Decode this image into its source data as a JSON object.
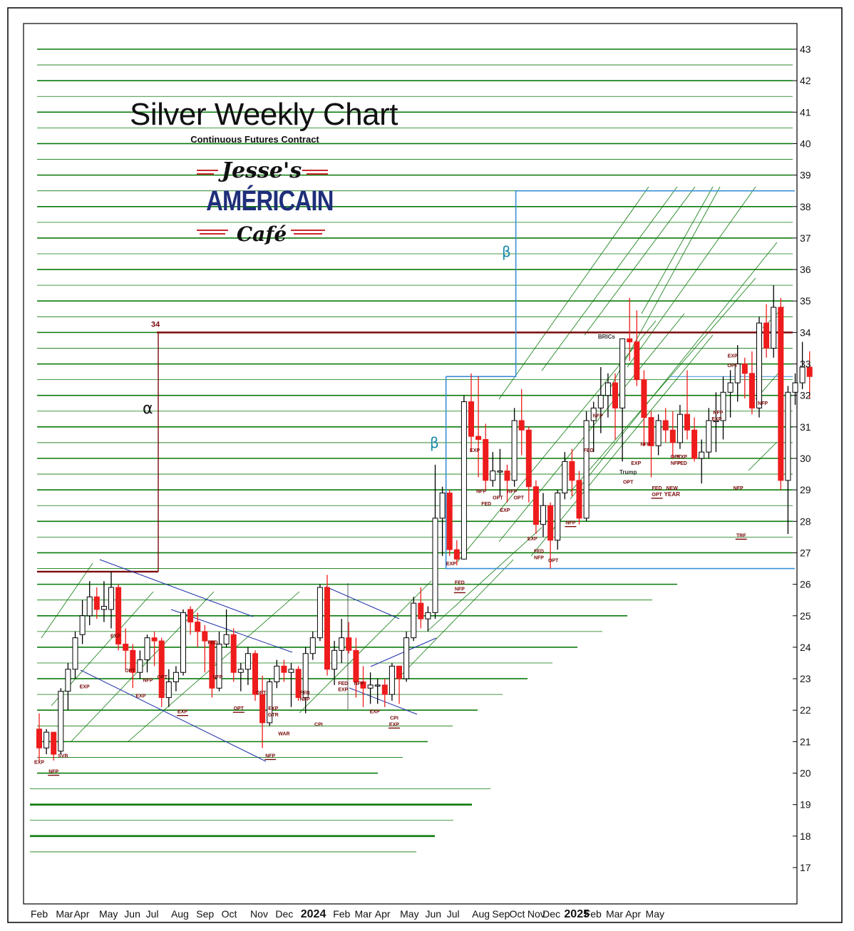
{
  "header": {
    "title": "Silver Weekly Chart",
    "subtitle": "Continuous Futures Contract",
    "logo": {
      "line1": "Jesse's",
      "line2": "AMÉRICAIN",
      "line3": "Café"
    }
  },
  "chart_data": {
    "type": "candlestick",
    "title": "Silver Weekly Chart",
    "subtitle": "Continuous Futures Contract",
    "ylim": [
      16.0,
      43.8
    ],
    "y_ticks": [
      17,
      18,
      19,
      20,
      21,
      22,
      23,
      24,
      25,
      26,
      27,
      28,
      29,
      30,
      31,
      32,
      33,
      34,
      35,
      36,
      37,
      38,
      39,
      40,
      41,
      42,
      43
    ],
    "x_tick_labels": [
      {
        "label": "Feb",
        "week": 0,
        "bold": false
      },
      {
        "label": "Mar",
        "week": 3.5,
        "bold": false
      },
      {
        "label": "Apr",
        "week": 6,
        "bold": false
      },
      {
        "label": "May",
        "week": 9.5,
        "bold": false
      },
      {
        "label": "Jun",
        "week": 13,
        "bold": false
      },
      {
        "label": "Jul",
        "week": 16,
        "bold": false
      },
      {
        "label": "Aug",
        "week": 19.5,
        "bold": false
      },
      {
        "label": "Sep",
        "week": 23,
        "bold": false
      },
      {
        "label": "Oct",
        "week": 26.5,
        "bold": false
      },
      {
        "label": "Nov",
        "week": 30.5,
        "bold": false
      },
      {
        "label": "Dec",
        "week": 34,
        "bold": false
      },
      {
        "label": "2024",
        "week": 37.5,
        "bold": true
      },
      {
        "label": "Feb",
        "week": 42,
        "bold": false
      },
      {
        "label": "Mar",
        "week": 45,
        "bold": false
      },
      {
        "label": "Apr",
        "week": 47.8,
        "bold": false
      },
      {
        "label": "May",
        "week": 51.3,
        "bold": false
      },
      {
        "label": "Jun",
        "week": 54.8,
        "bold": false
      },
      {
        "label": "Jul",
        "week": 57.8,
        "bold": false
      },
      {
        "label": "Aug",
        "week": 61.3,
        "bold": false
      },
      {
        "label": "Sep",
        "week": 64.1,
        "bold": false
      },
      {
        "label": "Oct",
        "week": 66.5,
        "bold": false
      },
      {
        "label": "Nov",
        "week": 69,
        "bold": false
      },
      {
        "label": "Dec",
        "week": 71.1,
        "bold": false
      },
      {
        "label": "2025",
        "week": 74.1,
        "bold": true
      },
      {
        "label": "Feb",
        "week": 76.9,
        "bold": false
      },
      {
        "label": "Mar",
        "week": 79.9,
        "bold": false
      },
      {
        "label": "Apr",
        "week": 82.6,
        "bold": false
      },
      {
        "label": "May",
        "week": 85.4,
        "bold": false
      }
    ],
    "candles": [
      {
        "o": 21.4,
        "h": 21.9,
        "l": 20.4,
        "c": 20.8
      },
      {
        "o": 20.8,
        "h": 21.4,
        "l": 20.6,
        "c": 21.3
      },
      {
        "o": 21.3,
        "h": 21.3,
        "l": 20.4,
        "c": 20.6
      },
      {
        "o": 20.7,
        "h": 22.7,
        "l": 20.6,
        "c": 22.6
      },
      {
        "o": 22.6,
        "h": 23.5,
        "l": 22.0,
        "c": 23.3
      },
      {
        "o": 23.3,
        "h": 24.5,
        "l": 23.0,
        "c": 24.3
      },
      {
        "o": 24.4,
        "h": 25.5,
        "l": 24.1,
        "c": 25.0
      },
      {
        "o": 25.0,
        "h": 26.1,
        "l": 24.7,
        "c": 25.6
      },
      {
        "o": 25.6,
        "h": 25.9,
        "l": 24.9,
        "c": 25.2
      },
      {
        "o": 25.2,
        "h": 26.1,
        "l": 24.8,
        "c": 25.3
      },
      {
        "o": 25.2,
        "h": 26.4,
        "l": 24.6,
        "c": 25.9
      },
      {
        "o": 25.9,
        "h": 26.0,
        "l": 23.9,
        "c": 24.1
      },
      {
        "o": 24.1,
        "h": 24.6,
        "l": 23.3,
        "c": 23.9
      },
      {
        "o": 23.9,
        "h": 24.1,
        "l": 22.7,
        "c": 23.2
      },
      {
        "o": 23.2,
        "h": 23.9,
        "l": 23.0,
        "c": 23.6
      },
      {
        "o": 23.6,
        "h": 24.4,
        "l": 23.2,
        "c": 24.3
      },
      {
        "o": 24.3,
        "h": 24.5,
        "l": 23.4,
        "c": 24.2
      },
      {
        "o": 24.2,
        "h": 24.3,
        "l": 22.1,
        "c": 22.4
      },
      {
        "o": 22.4,
        "h": 23.3,
        "l": 22.1,
        "c": 22.9
      },
      {
        "o": 22.9,
        "h": 23.4,
        "l": 22.6,
        "c": 23.2
      },
      {
        "o": 23.2,
        "h": 25.2,
        "l": 23.1,
        "c": 25.1
      },
      {
        "o": 25.2,
        "h": 25.3,
        "l": 24.4,
        "c": 24.8
      },
      {
        "o": 24.8,
        "h": 25.1,
        "l": 24.0,
        "c": 24.5
      },
      {
        "o": 24.5,
        "h": 24.7,
        "l": 23.2,
        "c": 24.2
      },
      {
        "o": 24.2,
        "h": 24.2,
        "l": 22.4,
        "c": 22.7
      },
      {
        "o": 22.7,
        "h": 24.5,
        "l": 22.6,
        "c": 24.1
      },
      {
        "o": 24.1,
        "h": 25.2,
        "l": 24.0,
        "c": 24.4
      },
      {
        "o": 24.4,
        "h": 24.6,
        "l": 22.9,
        "c": 23.2
      },
      {
        "o": 23.2,
        "h": 23.5,
        "l": 22.6,
        "c": 23.3
      },
      {
        "o": 23.3,
        "h": 24.0,
        "l": 22.8,
        "c": 23.8
      },
      {
        "o": 23.8,
        "h": 23.9,
        "l": 22.3,
        "c": 22.5
      },
      {
        "o": 22.5,
        "h": 23.1,
        "l": 20.8,
        "c": 21.6
      },
      {
        "o": 21.6,
        "h": 23.0,
        "l": 21.5,
        "c": 22.9
      },
      {
        "o": 22.9,
        "h": 23.6,
        "l": 22.7,
        "c": 23.4
      },
      {
        "o": 23.4,
        "h": 23.6,
        "l": 22.9,
        "c": 23.2
      },
      {
        "o": 23.2,
        "h": 23.5,
        "l": 22.1,
        "c": 23.3
      },
      {
        "o": 23.3,
        "h": 23.4,
        "l": 22.3,
        "c": 22.4
      },
      {
        "o": 22.4,
        "h": 24.0,
        "l": 21.9,
        "c": 23.8
      },
      {
        "o": 23.8,
        "h": 24.5,
        "l": 23.6,
        "c": 24.3
      },
      {
        "o": 24.3,
        "h": 26.0,
        "l": 24.2,
        "c": 25.9
      },
      {
        "o": 25.9,
        "h": 26.3,
        "l": 23.1,
        "c": 23.3
      },
      {
        "o": 23.3,
        "h": 24.2,
        "l": 22.8,
        "c": 23.9
      },
      {
        "o": 23.9,
        "h": 24.9,
        "l": 23.5,
        "c": 24.3
      },
      {
        "o": 24.3,
        "h": 24.8,
        "l": 23.8,
        "c": 23.9
      },
      {
        "o": 23.9,
        "h": 24.3,
        "l": 22.4,
        "c": 22.9
      },
      {
        "o": 22.9,
        "h": 23.4,
        "l": 22.1,
        "c": 22.7
      },
      {
        "o": 22.7,
        "h": 23.2,
        "l": 22.2,
        "c": 22.8
      },
      {
        "o": 22.8,
        "h": 23.0,
        "l": 22.2,
        "c": 22.8
      },
      {
        "o": 22.8,
        "h": 23.0,
        "l": 22.1,
        "c": 22.5
      },
      {
        "o": 22.5,
        "h": 23.5,
        "l": 22.3,
        "c": 23.4
      },
      {
        "o": 23.4,
        "h": 23.4,
        "l": 22.2,
        "c": 23.0
      },
      {
        "o": 23.0,
        "h": 24.5,
        "l": 22.9,
        "c": 24.3
      },
      {
        "o": 24.3,
        "h": 25.6,
        "l": 24.2,
        "c": 25.4
      },
      {
        "o": 25.4,
        "h": 25.9,
        "l": 24.6,
        "c": 24.9
      },
      {
        "o": 24.9,
        "h": 25.3,
        "l": 24.5,
        "c": 25.1
      },
      {
        "o": 25.1,
        "h": 29.8,
        "l": 24.9,
        "c": 28.1
      },
      {
        "o": 28.1,
        "h": 29.1,
        "l": 26.9,
        "c": 28.9
      },
      {
        "o": 28.9,
        "h": 29.0,
        "l": 26.9,
        "c": 27.1
      },
      {
        "o": 27.1,
        "h": 27.4,
        "l": 26.6,
        "c": 26.8
      },
      {
        "o": 26.8,
        "h": 32.0,
        "l": 26.8,
        "c": 31.8
      },
      {
        "o": 31.8,
        "h": 32.7,
        "l": 30.2,
        "c": 30.7
      },
      {
        "o": 30.7,
        "h": 32.6,
        "l": 29.4,
        "c": 30.6
      },
      {
        "o": 30.6,
        "h": 31.1,
        "l": 29.0,
        "c": 29.3
      },
      {
        "o": 29.3,
        "h": 30.2,
        "l": 29.1,
        "c": 29.6
      },
      {
        "o": 29.6,
        "h": 30.3,
        "l": 28.8,
        "c": 29.6
      },
      {
        "o": 29.6,
        "h": 29.8,
        "l": 28.6,
        "c": 29.3
      },
      {
        "o": 29.3,
        "h": 31.6,
        "l": 29.1,
        "c": 31.2
      },
      {
        "o": 31.2,
        "h": 32.2,
        "l": 30.1,
        "c": 30.9
      },
      {
        "o": 30.9,
        "h": 31.0,
        "l": 28.6,
        "c": 29.1
      },
      {
        "o": 29.1,
        "h": 29.3,
        "l": 27.6,
        "c": 27.9
      },
      {
        "o": 27.9,
        "h": 28.9,
        "l": 27.5,
        "c": 28.5
      },
      {
        "o": 28.5,
        "h": 28.6,
        "l": 26.5,
        "c": 27.4
      },
      {
        "o": 27.4,
        "h": 29.0,
        "l": 27.1,
        "c": 28.9
      },
      {
        "o": 28.9,
        "h": 30.2,
        "l": 28.7,
        "c": 29.9
      },
      {
        "o": 29.9,
        "h": 30.3,
        "l": 28.8,
        "c": 29.3
      },
      {
        "o": 29.3,
        "h": 29.6,
        "l": 27.9,
        "c": 28.1
      },
      {
        "o": 28.1,
        "h": 31.5,
        "l": 28.0,
        "c": 31.2
      },
      {
        "o": 31.2,
        "h": 31.8,
        "l": 30.2,
        "c": 31.6
      },
      {
        "o": 31.6,
        "h": 32.9,
        "l": 30.8,
        "c": 32.0
      },
      {
        "o": 32.0,
        "h": 32.7,
        "l": 31.3,
        "c": 32.4
      },
      {
        "o": 32.4,
        "h": 32.7,
        "l": 30.6,
        "c": 31.6
      },
      {
        "o": 31.6,
        "h": 33.8,
        "l": 29.9,
        "c": 33.8
      },
      {
        "o": 33.8,
        "h": 35.1,
        "l": 33.1,
        "c": 33.7
      },
      {
        "o": 33.7,
        "h": 34.7,
        "l": 32.3,
        "c": 32.5
      },
      {
        "o": 32.5,
        "h": 32.8,
        "l": 30.4,
        "c": 31.3
      },
      {
        "o": 31.3,
        "h": 31.5,
        "l": 29.4,
        "c": 30.4
      },
      {
        "o": 30.4,
        "h": 31.4,
        "l": 30.1,
        "c": 31.2
      },
      {
        "o": 31.2,
        "h": 31.6,
        "l": 30.5,
        "c": 30.9
      },
      {
        "o": 30.9,
        "h": 31.5,
        "l": 30.0,
        "c": 30.5
      },
      {
        "o": 30.5,
        "h": 31.7,
        "l": 30.3,
        "c": 31.4
      },
      {
        "o": 31.4,
        "h": 32.8,
        "l": 30.6,
        "c": 30.9
      },
      {
        "o": 30.9,
        "h": 31.3,
        "l": 29.9,
        "c": 30.0
      },
      {
        "o": 30.0,
        "h": 30.6,
        "l": 29.2,
        "c": 30.2
      },
      {
        "o": 30.2,
        "h": 31.6,
        "l": 30.0,
        "c": 31.2
      },
      {
        "o": 31.2,
        "h": 32.1,
        "l": 30.2,
        "c": 31.2
      },
      {
        "o": 31.2,
        "h": 32.6,
        "l": 30.6,
        "c": 32.1
      },
      {
        "o": 32.1,
        "h": 32.8,
        "l": 31.3,
        "c": 32.4
      },
      {
        "o": 32.4,
        "h": 33.6,
        "l": 31.8,
        "c": 33.0
      },
      {
        "o": 33.0,
        "h": 33.2,
        "l": 31.9,
        "c": 32.7
      },
      {
        "o": 32.7,
        "h": 33.4,
        "l": 31.4,
        "c": 31.6
      },
      {
        "o": 31.6,
        "h": 34.5,
        "l": 31.3,
        "c": 34.3
      },
      {
        "o": 34.3,
        "h": 34.9,
        "l": 33.2,
        "c": 33.5
      },
      {
        "o": 33.5,
        "h": 35.5,
        "l": 33.2,
        "c": 34.8
      },
      {
        "o": 34.8,
        "h": 35.1,
        "l": 29.0,
        "c": 29.3
      },
      {
        "o": 29.3,
        "h": 32.3,
        "l": 27.6,
        "c": 32.1
      },
      {
        "o": 32.1,
        "h": 32.7,
        "l": 31.7,
        "c": 32.4
      },
      {
        "o": 32.4,
        "h": 33.7,
        "l": 32.2,
        "c": 32.9
      },
      {
        "o": 32.9,
        "h": 33.4,
        "l": 31.9,
        "c": 32.6
      }
    ],
    "levels": {
      "red_line": {
        "label": "34",
        "value": 34.0
      },
      "alpha": {
        "label": "α",
        "from": 26.4,
        "to": 34.0
      },
      "beta_labels": [
        "β",
        "β"
      ]
    },
    "annotations": [
      {
        "text": "EXP",
        "week": 0,
        "y": 20.3
      },
      {
        "text": "NFP",
        "week": 2,
        "y": 20.0,
        "underline": true
      },
      {
        "text": "SVB",
        "week": 3.3,
        "y": 20.5
      },
      {
        "text": "EXP",
        "week": 6.3,
        "y": 22.7
      },
      {
        "text": "EXP",
        "week": 10.6,
        "y": 24.3
      },
      {
        "text": "OPT",
        "week": 12.6,
        "y": 23.2
      },
      {
        "text": "EXP",
        "week": 14.1,
        "y": 22.4
      },
      {
        "text": "NFP",
        "week": 15.1,
        "y": 22.9
      },
      {
        "text": "OPT",
        "week": 17.1,
        "y": 23.0
      },
      {
        "text": "EXP",
        "week": 19.9,
        "y": 21.9,
        "underline": true
      },
      {
        "text": "FED",
        "week": 24.1,
        "y": 24.1
      },
      {
        "text": "NFP",
        "week": 24.8,
        "y": 23.0
      },
      {
        "text": "OPT",
        "week": 27.7,
        "y": 22.0,
        "underline": true
      },
      {
        "text": "OPT",
        "week": 30.8,
        "y": 22.5
      },
      {
        "text": "EXP",
        "week": 32.5,
        "y": 22.0
      },
      {
        "text": "GTR",
        "week": 32.5,
        "y": 21.8
      },
      {
        "text": "WAR",
        "week": 34.0,
        "y": 21.2
      },
      {
        "text": "NFP",
        "week": 32.1,
        "y": 20.5,
        "underline": true
      },
      {
        "text": "FED",
        "week": 36.9,
        "y": 22.5
      },
      {
        "text": "NFP",
        "week": 36.9,
        "y": 22.3
      },
      {
        "text": "CPI",
        "week": 38.8,
        "y": 21.5
      },
      {
        "text": "FED",
        "week": 42.2,
        "y": 22.8
      },
      {
        "text": "EXP",
        "week": 42.2,
        "y": 22.6
      },
      {
        "text": "NFP",
        "week": 44.4,
        "y": 22.8
      },
      {
        "text": "EXP",
        "week": 46.6,
        "y": 21.9
      },
      {
        "text": "CPI",
        "week": 49.3,
        "y": 21.7
      },
      {
        "text": "EXP",
        "week": 49.3,
        "y": 21.5,
        "underline": true
      },
      {
        "text": "EXP",
        "week": 57.2,
        "y": 26.6
      },
      {
        "text": "FED",
        "week": 58.4,
        "y": 26.0
      },
      {
        "text": "NFP",
        "week": 58.4,
        "y": 25.8,
        "underline": true
      },
      {
        "text": "EXP",
        "week": 60.5,
        "y": 30.2
      },
      {
        "text": "NFP",
        "week": 61.4,
        "y": 28.9
      },
      {
        "text": "FED",
        "week": 62.1,
        "y": 28.5
      },
      {
        "text": "OPT",
        "week": 63.7,
        "y": 28.7
      },
      {
        "text": "EXP",
        "week": 64.7,
        "y": 28.3
      },
      {
        "text": "NFP",
        "week": 65.7,
        "y": 28.9
      },
      {
        "text": "OPT",
        "week": 66.6,
        "y": 28.7
      },
      {
        "text": "EXP",
        "week": 68.5,
        "y": 27.4
      },
      {
        "text": "FED",
        "week": 69.4,
        "y": 27.0
      },
      {
        "text": "NFP",
        "week": 69.4,
        "y": 26.8
      },
      {
        "text": "OPT",
        "week": 71.4,
        "y": 26.7
      },
      {
        "text": "NFP",
        "week": 73.8,
        "y": 27.9,
        "underline": true
      },
      {
        "text": "FED",
        "week": 76.3,
        "y": 30.2
      },
      {
        "text": "NFP",
        "week": 77.6,
        "y": 31.3
      },
      {
        "text": "BRICs",
        "week": 78.8,
        "y": 33.8
      },
      {
        "text": "Trump",
        "week": 81.8,
        "y": 29.5
      },
      {
        "text": "OPT",
        "week": 81.8,
        "y": 29.2
      },
      {
        "text": "EXP",
        "week": 82.9,
        "y": 29.8
      },
      {
        "text": "NFP",
        "week": 84.2,
        "y": 30.4
      },
      {
        "text": "FED",
        "week": 85.8,
        "y": 29.0
      },
      {
        "text": "OPT",
        "week": 85.8,
        "y": 28.8,
        "underline": true
      },
      {
        "text": "NEW",
        "week": 87.9,
        "y": 29.0
      },
      {
        "text": "YEAR",
        "week": 87.9,
        "y": 28.8
      },
      {
        "text": "OPT",
        "week": 88.4,
        "y": 30.0
      },
      {
        "text": "NFP",
        "week": 88.4,
        "y": 29.8
      },
      {
        "text": "EXP",
        "week": 89.3,
        "y": 30.0
      },
      {
        "text": "FED",
        "week": 89.3,
        "y": 29.8
      },
      {
        "text": "EXP",
        "week": 94.1,
        "y": 31.2
      },
      {
        "text": "NFP",
        "week": 94.3,
        "y": 31.4
      },
      {
        "text": "EXP",
        "week": 96.3,
        "y": 33.2
      },
      {
        "text": "OPT",
        "week": 96.3,
        "y": 32.9
      },
      {
        "text": "NFP",
        "week": 97.1,
        "y": 29.0
      },
      {
        "text": "TRF",
        "week": 97.5,
        "y": 27.5,
        "underline": true
      },
      {
        "text": "NFP",
        "week": 100.5,
        "y": 31.7
      }
    ],
    "colors": {
      "up_body": "#ffffff",
      "down_body": "#ee1c1c",
      "grid_green": "#0b7a0b",
      "red_level": "#7a0a0a",
      "blue_box": "#3b8fd6",
      "channel": "#1f2fa8",
      "annotation": "#7a0a0a"
    }
  }
}
